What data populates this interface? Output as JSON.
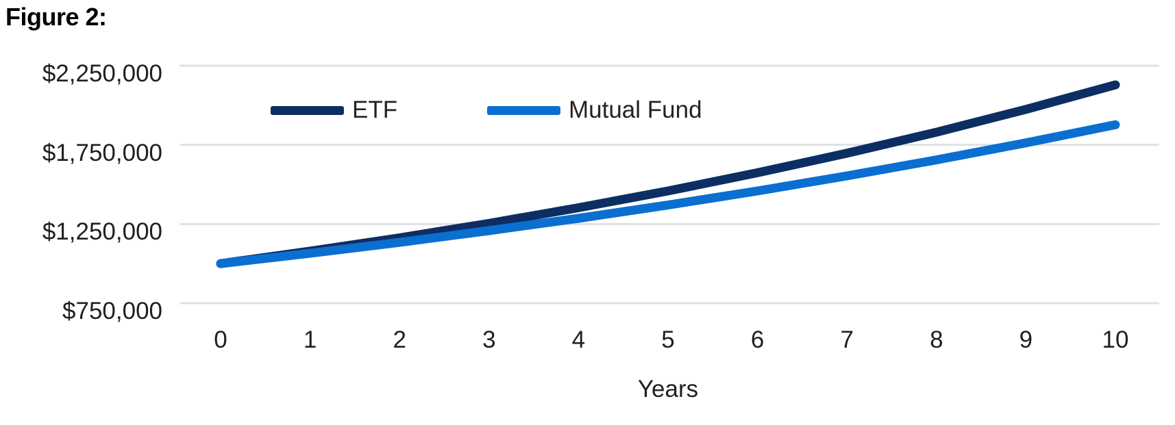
{
  "figure": {
    "title": "Figure 2:"
  },
  "colors": {
    "etf_line": "#0d2e63",
    "mutual_fund_line": "#0b6fd1",
    "gridline": "#dfe1e4",
    "axis_text": "#1f1f1f",
    "background": "#ffffff"
  },
  "chart_data": {
    "type": "line",
    "title": "Figure 2:",
    "xlabel": "Years",
    "ylabel": "",
    "xlim": [
      0,
      10
    ],
    "ylim": [
      750000,
      2250000
    ],
    "grid": "horizontal",
    "legend_position": "top-inside",
    "x": [
      0,
      1,
      2,
      3,
      4,
      5,
      6,
      7,
      8,
      9,
      10
    ],
    "x_tick_labels": [
      "0",
      "1",
      "2",
      "3",
      "4",
      "5",
      "6",
      "7",
      "8",
      "9",
      "10"
    ],
    "y_ticks": [
      {
        "value": 2250000,
        "label": "$2,250,000"
      },
      {
        "value": 1750000,
        "label": "$1,750,000"
      },
      {
        "value": 1250000,
        "label": "$1,250,000"
      },
      {
        "value": 750000,
        "label": "$750,000"
      }
    ],
    "series": [
      {
        "name": "ETF",
        "color": "#0d2e63",
        "values": [
          1000000,
          1079000,
          1163000,
          1254000,
          1353000,
          1459000,
          1574000,
          1697000,
          1830000,
          1974000,
          2129000
        ]
      },
      {
        "name": "Mutual Fund",
        "color": "#0b6fd1",
        "values": [
          1000000,
          1065000,
          1134000,
          1208000,
          1286000,
          1370000,
          1459000,
          1554000,
          1655000,
          1763000,
          1877000
        ]
      }
    ]
  }
}
